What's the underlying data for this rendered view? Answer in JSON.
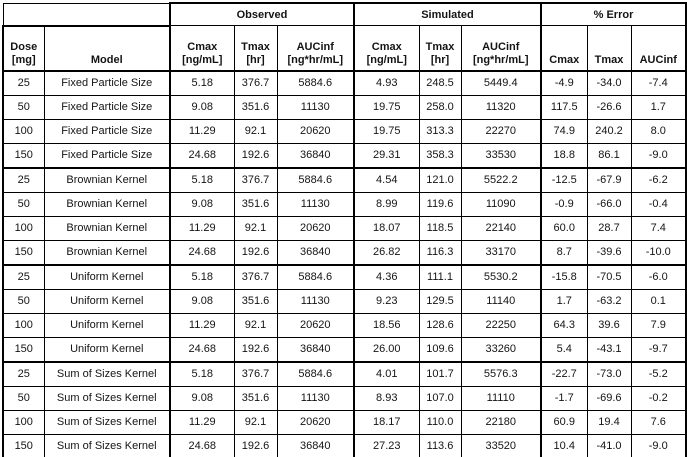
{
  "colors": {
    "border": "#000000",
    "text": "#141414",
    "background": "#ffffff"
  },
  "table": {
    "group_headers": [
      {
        "id": "observed",
        "label": "Observed",
        "colspan": 3
      },
      {
        "id": "simulated",
        "label": "Simulated",
        "colspan": 3
      },
      {
        "id": "error",
        "label": "% Error",
        "colspan": 3
      }
    ],
    "columns": [
      {
        "id": "dose",
        "label": "Dose",
        "unit": "[mg]",
        "width": 41
      },
      {
        "id": "model",
        "label": "Model",
        "unit": "",
        "width": 126
      },
      {
        "id": "obs-cmax",
        "label": "Cmax",
        "unit": "[ng/mL]",
        "width": 64
      },
      {
        "id": "obs-tmax",
        "label": "Tmax",
        "unit": "[hr]",
        "width": 43
      },
      {
        "id": "obs-aucinf",
        "label": "AUCinf",
        "unit": "[ng*hr/mL]",
        "width": 77
      },
      {
        "id": "sim-cmax",
        "label": "Cmax",
        "unit": "[ng/mL]",
        "width": 65
      },
      {
        "id": "sim-tmax",
        "label": "Tmax",
        "unit": "[hr]",
        "width": 42
      },
      {
        "id": "sim-aucinf",
        "label": "AUCinf",
        "unit": "[ng*hr/mL]",
        "width": 80
      },
      {
        "id": "err-cmax",
        "label": "Cmax",
        "unit": "",
        "width": 46
      },
      {
        "id": "err-tmax",
        "label": "Tmax",
        "unit": "",
        "width": 44
      },
      {
        "id": "err-aucinf",
        "label": "AUCinf",
        "unit": "",
        "width": 55
      }
    ],
    "rows": [
      [
        "25",
        "Fixed Particle Size",
        "5.18",
        "376.7",
        "5884.6",
        "4.93",
        "248.5",
        "5449.4",
        "-4.9",
        "-34.0",
        "-7.4"
      ],
      [
        "50",
        "Fixed Particle Size",
        "9.08",
        "351.6",
        "11130",
        "19.75",
        "258.0",
        "11320",
        "117.5",
        "-26.6",
        "1.7"
      ],
      [
        "100",
        "Fixed Particle Size",
        "11.29",
        "92.1",
        "20620",
        "19.75",
        "313.3",
        "22270",
        "74.9",
        "240.2",
        "8.0"
      ],
      [
        "150",
        "Fixed Particle Size",
        "24.68",
        "192.6",
        "36840",
        "29.31",
        "358.3",
        "33530",
        "18.8",
        "86.1",
        "-9.0"
      ],
      [
        "25",
        "Brownian Kernel",
        "5.18",
        "376.7",
        "5884.6",
        "4.54",
        "121.0",
        "5522.2",
        "-12.5",
        "-67.9",
        "-6.2"
      ],
      [
        "50",
        "Brownian Kernel",
        "9.08",
        "351.6",
        "11130",
        "8.99",
        "119.6",
        "11090",
        "-0.9",
        "-66.0",
        "-0.4"
      ],
      [
        "100",
        "Brownian Kernel",
        "11.29",
        "92.1",
        "20620",
        "18.07",
        "118.5",
        "22140",
        "60.0",
        "28.7",
        "7.4"
      ],
      [
        "150",
        "Brownian Kernel",
        "24.68",
        "192.6",
        "36840",
        "26.82",
        "116.3",
        "33170",
        "8.7",
        "-39.6",
        "-10.0"
      ],
      [
        "25",
        "Uniform Kernel",
        "5.18",
        "376.7",
        "5884.6",
        "4.36",
        "111.1",
        "5530.2",
        "-15.8",
        "-70.5",
        "-6.0"
      ],
      [
        "50",
        "Uniform Kernel",
        "9.08",
        "351.6",
        "11130",
        "9.23",
        "129.5",
        "11140",
        "1.7",
        "-63.2",
        "0.1"
      ],
      [
        "100",
        "Uniform Kernel",
        "11.29",
        "92.1",
        "20620",
        "18.56",
        "128.6",
        "22250",
        "64.3",
        "39.6",
        "7.9"
      ],
      [
        "150",
        "Uniform Kernel",
        "24.68",
        "192.6",
        "36840",
        "26.00",
        "109.6",
        "33260",
        "5.4",
        "-43.1",
        "-9.7"
      ],
      [
        "25",
        "Sum of Sizes Kernel",
        "5.18",
        "376.7",
        "5884.6",
        "4.01",
        "101.7",
        "5576.3",
        "-22.7",
        "-73.0",
        "-5.2"
      ],
      [
        "50",
        "Sum of Sizes Kernel",
        "9.08",
        "351.6",
        "11130",
        "8.93",
        "107.0",
        "11110",
        "-1.7",
        "-69.6",
        "-0.2"
      ],
      [
        "100",
        "Sum of Sizes Kernel",
        "11.29",
        "92.1",
        "20620",
        "18.17",
        "110.0",
        "22180",
        "60.9",
        "19.4",
        "7.6"
      ],
      [
        "150",
        "Sum of Sizes Kernel",
        "24.68",
        "192.6",
        "36840",
        "27.23",
        "113.6",
        "33520",
        "10.4",
        "-41.0",
        "-9.0"
      ]
    ],
    "thick_bottom_after_row_indexes": [
      3,
      7,
      11,
      15
    ],
    "thick_left_column_ids": [
      "obs-cmax",
      "sim-cmax",
      "err-cmax"
    ]
  }
}
